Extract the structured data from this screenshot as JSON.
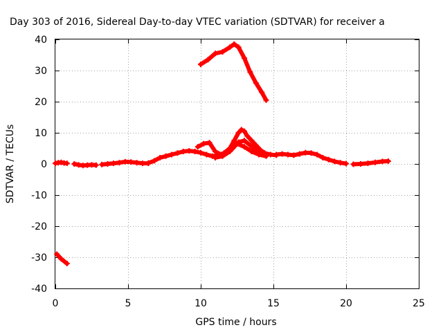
{
  "chart_data": {
    "type": "scatter",
    "title": "Day 303 of 2016, Sidereal Day-to-day VTEC variation (SDTVAR) for receiver a",
    "xlabel": "GPS time / hours",
    "ylabel": "SDTVAR / TECUs",
    "xlim": [
      0,
      25
    ],
    "ylim": [
      -40,
      40
    ],
    "xticks": [
      0,
      5,
      10,
      15,
      20,
      25
    ],
    "yticks": [
      -40,
      -30,
      -20,
      -10,
      0,
      10,
      20,
      30,
      40
    ],
    "xtick_labels": [
      "0",
      "5",
      "10",
      "15",
      "20",
      "25"
    ],
    "ytick_labels": [
      "-40",
      "-30",
      "-20",
      "-10",
      "0",
      "10",
      "20",
      "30",
      "40"
    ],
    "grid": true,
    "series_color": "#ff0000",
    "series": [
      {
        "x": [
          0.0,
          0.2,
          0.4,
          0.6,
          0.8
        ],
        "y": [
          0.2,
          0.4,
          0.5,
          0.3,
          0.2
        ]
      },
      {
        "x": [
          1.3,
          1.6,
          1.9,
          2.2,
          2.5,
          2.8
        ],
        "y": [
          0.0,
          -0.3,
          -0.5,
          -0.4,
          -0.3,
          -0.4
        ]
      },
      {
        "x": [
          3.2,
          3.6,
          4.0,
          4.4,
          4.8,
          5.2,
          5.6,
          6.0,
          6.4
        ],
        "y": [
          -0.2,
          0.0,
          0.2,
          0.4,
          0.7,
          0.6,
          0.4,
          0.2,
          0.2
        ]
      },
      {
        "x": [
          6.4,
          6.8,
          7.2,
          7.6,
          8.0,
          8.4,
          8.8,
          9.2,
          9.6,
          10.0,
          10.4,
          10.8,
          11.2,
          11.6,
          12.0,
          12.3,
          12.6,
          12.8,
          13.0,
          13.2,
          13.5,
          13.8,
          14.1,
          14.4,
          14.8,
          15.2
        ],
        "y": [
          0.3,
          1.0,
          2.0,
          2.5,
          3.0,
          3.5,
          4.0,
          4.2,
          4.0,
          3.6,
          3.0,
          2.5,
          2.8,
          3.5,
          5.0,
          7.5,
          10.0,
          11.0,
          10.5,
          9.0,
          7.5,
          6.0,
          4.5,
          3.5,
          3.0,
          2.8
        ]
      },
      {
        "x": [
          9.8,
          10.2,
          10.6,
          11.0,
          11.4,
          11.8,
          12.2,
          12.6,
          13.0,
          13.4,
          13.8,
          14.2
        ],
        "y": [
          5.5,
          6.5,
          6.8,
          4.0,
          3.0,
          3.5,
          5.0,
          7.0,
          7.5,
          6.0,
          4.5,
          3.0
        ]
      },
      {
        "x": [
          11.0,
          11.5,
          12.0,
          12.5,
          13.0,
          13.5,
          14.0,
          14.5
        ],
        "y": [
          2.0,
          2.5,
          4.0,
          6.5,
          5.5,
          4.0,
          3.0,
          2.5
        ]
      },
      {
        "x": [
          15.2,
          15.6,
          16.0,
          16.4,
          16.8,
          17.2,
          17.6,
          18.0,
          18.4,
          18.8,
          19.2,
          19.6,
          20.0
        ],
        "y": [
          3.0,
          3.2,
          3.0,
          2.8,
          3.2,
          3.6,
          3.5,
          3.0,
          2.0,
          1.4,
          0.8,
          0.4,
          0.1
        ]
      },
      {
        "x": [
          20.5,
          21.0,
          21.5,
          22.0,
          22.5,
          22.9
        ],
        "y": [
          -0.1,
          0.0,
          0.2,
          0.5,
          0.8,
          0.9
        ]
      },
      {
        "x": [
          10.0,
          10.5,
          11.0,
          11.5,
          12.0,
          12.3,
          12.6,
          13.0,
          13.4,
          13.8,
          14.2,
          14.5
        ],
        "y": [
          32.0,
          33.5,
          35.5,
          36.0,
          37.5,
          38.5,
          37.5,
          34.0,
          29.5,
          26.0,
          23.0,
          20.5
        ]
      },
      {
        "x": [
          0.1,
          0.4,
          0.8
        ],
        "y": [
          -29.0,
          -30.5,
          -32.0
        ]
      }
    ]
  }
}
